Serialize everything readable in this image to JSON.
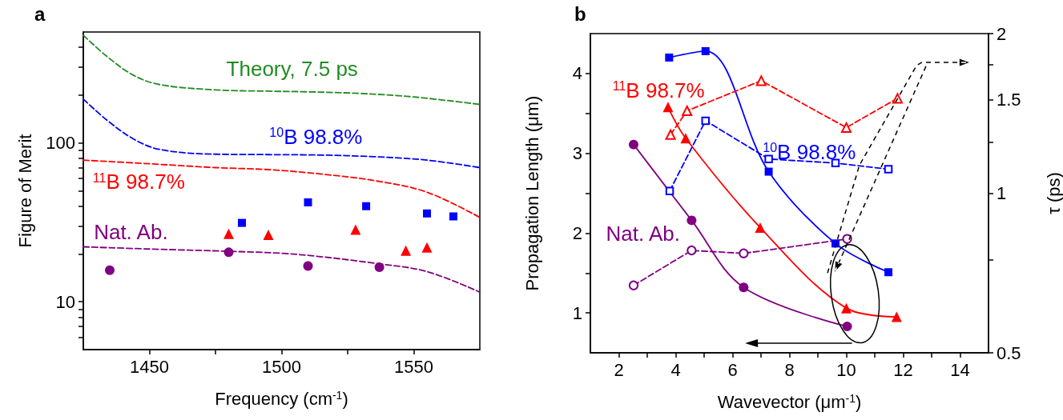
{
  "chart_data": [
    {
      "type": "scatter",
      "title": "a",
      "xlabel": "Frequency (cm$^{-1}$)",
      "ylabel": "Figure of Merit",
      "log": true,
      "xlim": [
        1425,
        1575
      ],
      "xticks": [
        1450,
        {
          "value": 1475,
          "label": null
        },
        1500,
        {
          "value": 1525,
          "label": null
        },
        1550
      ],
      "ylim": [
        5,
        500
      ],
      "yticks": [
        {
          "value": 6,
          "label": null
        },
        {
          "value": 7,
          "label": null
        },
        {
          "value": 8,
          "label": null
        },
        {
          "value": 9,
          "label": null
        },
        10,
        {
          "value": 20,
          "label": null
        },
        {
          "value": 30,
          "label": null
        },
        {
          "value": 40,
          "label": null
        },
        {
          "value": 50,
          "label": null
        },
        {
          "value": 60,
          "label": null
        },
        {
          "value": 70,
          "label": null
        },
        {
          "value": 80,
          "label": null
        },
        {
          "value": 90,
          "label": null
        },
        100,
        {
          "value": 200,
          "label": null
        },
        {
          "value": 300,
          "label": null
        },
        {
          "value": 400,
          "label": null
        }
      ],
      "series": [
        {
          "name": "Theory, 7.5 ps",
          "type": "line",
          "color": "#228b22",
          "marker": "none",
          "line_style": "dashed",
          "x": [
            1425,
            1434,
            1444,
            1454,
            1475,
            1495,
            1510,
            1530,
            1550,
            1575
          ],
          "values": [
            477,
            350,
            267,
            233,
            216,
            212,
            210,
            205,
            195,
            175
          ]
        },
        {
          "name": "$^{10}$B 98.8%",
          "type": "line",
          "color": "#0000ff",
          "marker": "none",
          "line_style": "dashed",
          "x": [
            1425,
            1434,
            1444,
            1454,
            1475,
            1495,
            1514,
            1535,
            1555,
            1575
          ],
          "values": [
            189,
            139,
            106,
            91,
            85,
            84.5,
            84,
            82,
            78,
            70
          ]
        },
        {
          "name": "$^{11}$B 98.7%",
          "type": "line",
          "color": "#ff0000",
          "marker": "none",
          "line_style": "dashed",
          "x": [
            1425,
            1450,
            1475,
            1495,
            1514,
            1535,
            1555,
            1575
          ],
          "values": [
            78,
            74,
            70,
            68,
            64,
            58,
            49,
            34
          ]
        },
        {
          "name": "Nat. Ab.",
          "type": "line",
          "color": "#800080",
          "marker": "none",
          "line_style": "dashed",
          "x": [
            1425,
            1450,
            1480,
            1500,
            1514,
            1535,
            1555,
            1575
          ],
          "values": [
            22.2,
            21.5,
            20.8,
            20.2,
            19.3,
            17.5,
            15.5,
            11.5
          ]
        },
        {
          "color": "#0000ff",
          "marker": "square",
          "x": [
            1485,
            1510,
            1532,
            1555,
            1565
          ],
          "values": [
            31.4,
            42.3,
            40,
            36,
            34.5
          ]
        },
        {
          "color": "#ff0000",
          "marker": "triangle",
          "x": [
            1480,
            1495,
            1528,
            1547,
            1555
          ],
          "values": [
            26.8,
            26.4,
            28.5,
            21,
            22
          ]
        },
        {
          "color": "#800080",
          "marker": "circle",
          "x": [
            1435,
            1480,
            1510,
            1537
          ],
          "values": [
            15.8,
            20.5,
            16.8,
            16.5
          ]
        }
      ]
    },
    {
      "type": "line",
      "title": "b",
      "xlabel": "Wavevector (μm$^{-1}$)",
      "ylabel": "Propagation Length (μm)",
      "y2label": "τ (ps)",
      "log": "y2",
      "xlim": [
        1,
        15
      ],
      "xticks": [
        2,
        {
          "value": 3,
          "label": null
        },
        4,
        {
          "value": 5,
          "label": null
        },
        6,
        {
          "value": 7,
          "label": null
        },
        8,
        {
          "value": 9,
          "label": null
        },
        10,
        {
          "value": 11,
          "label": null
        },
        12,
        {
          "value": 13,
          "label": null
        },
        14
      ],
      "ylim": [
        0.5,
        4.5
      ],
      "yticks": [
        1,
        {
          "value": 1.5,
          "label": null
        },
        2,
        {
          "value": 2.5,
          "label": null
        },
        3,
        {
          "value": 3.5,
          "label": null
        },
        4
      ],
      "y2lim": [
        0.5,
        2
      ],
      "y2ticks": [
        0.5,
        {
          "value": 0.75,
          "label": null
        },
        1,
        {
          "value": 1.25,
          "label": null
        },
        1.5,
        {
          "value": 1.75,
          "label": null
        },
        2
      ],
      "series": [
        {
          "name": "$^{10}$B 98.8%",
          "color": "#0000ff",
          "marker": "square",
          "line_style": "solid",
          "x": [
            3.77,
            5.05,
            7.27,
            9.62,
            11.48
          ],
          "values": [
            4.2,
            4.28,
            2.77,
            1.87,
            1.51
          ]
        },
        {
          "name": "$^{11}$B 98.7%",
          "color": "#ff0000",
          "marker": "triangle",
          "line_style": "solid",
          "x": [
            3.73,
            4.35,
            6.97,
            10.0,
            11.77
          ],
          "values": [
            3.58,
            3.19,
            2.07,
            1.06,
            0.95
          ]
        },
        {
          "name": "Nat. Ab.",
          "color": "#800080",
          "marker": "circle",
          "line_style": "solid",
          "x": [
            2.52,
            4.56,
            6.39,
            10.03
          ],
          "values": [
            3.11,
            2.16,
            1.32,
            0.83
          ]
        },
        {
          "axis": "y2",
          "color": "#0000ff",
          "marker": "square",
          "line_style": "dashed",
          "x": [
            3.79,
            5.05,
            7.27,
            9.62,
            11.48
          ],
          "values": [
            1.01,
            1.37,
            1.16,
            1.14,
            1.11
          ]
        },
        {
          "axis": "y2",
          "color": "#ff0000",
          "marker": "triangle",
          "line_style": "dashed",
          "x": [
            3.82,
            4.4,
            7.01,
            10.0,
            11.8
          ],
          "values": [
            1.29,
            1.43,
            1.63,
            1.33,
            1.51
          ]
        },
        {
          "axis": "y2",
          "color": "#800080",
          "marker": "circle",
          "line_style": "dashed",
          "x": [
            2.52,
            4.56,
            6.39,
            10.03
          ],
          "values": [
            0.67,
            0.78,
            0.77,
            0.82
          ]
        }
      ]
    }
  ]
}
